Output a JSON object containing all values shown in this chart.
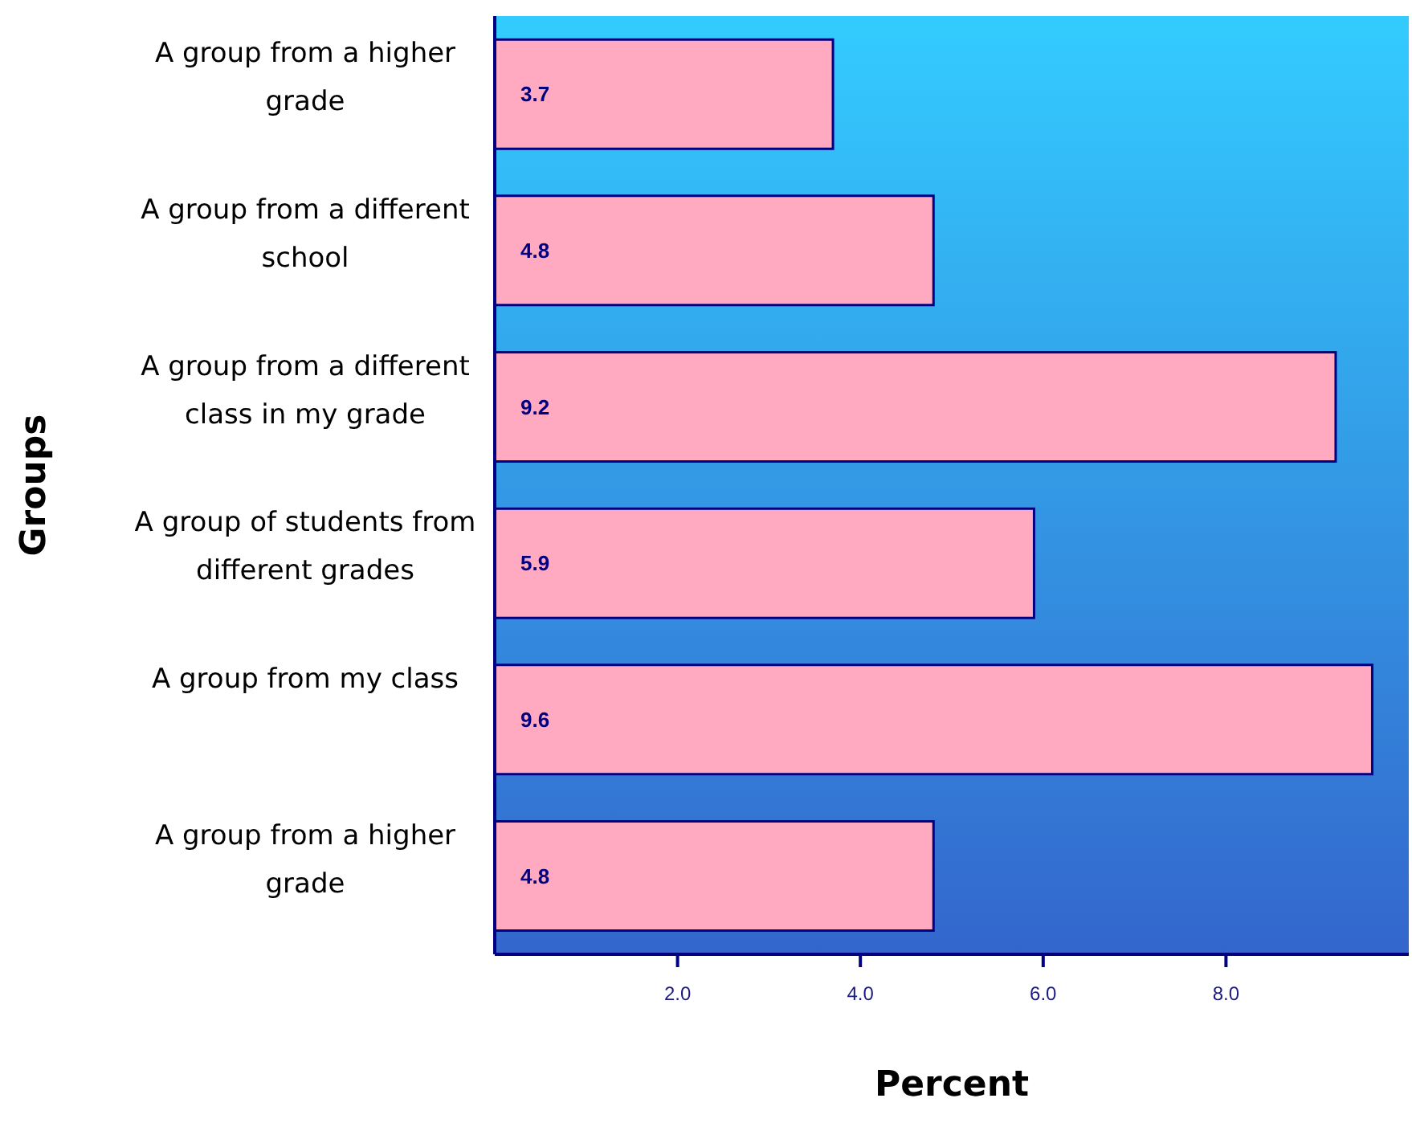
{
  "chart_data": {
    "type": "bar",
    "orientation": "horizontal",
    "xlabel": "Percent",
    "ylabel": "Groups",
    "categories": [
      "A group from a higher grade",
      "A group from a different school",
      "A group from a different class in my grade",
      "A group of students from different grades",
      "A group from my class",
      "A group from a higher grade"
    ],
    "values": [
      3.7,
      4.8,
      9.2,
      5.9,
      9.6,
      4.8
    ],
    "color": "#ffaac0",
    "data_labels": true,
    "xlim": [
      0,
      10
    ],
    "xticks": [
      {
        "value": 2,
        "label": "2.0"
      },
      {
        "value": 4,
        "label": "4.0"
      },
      {
        "value": 6,
        "label": "6.0"
      },
      {
        "value": 8,
        "label": "8.0"
      }
    ],
    "grid": false
  }
}
